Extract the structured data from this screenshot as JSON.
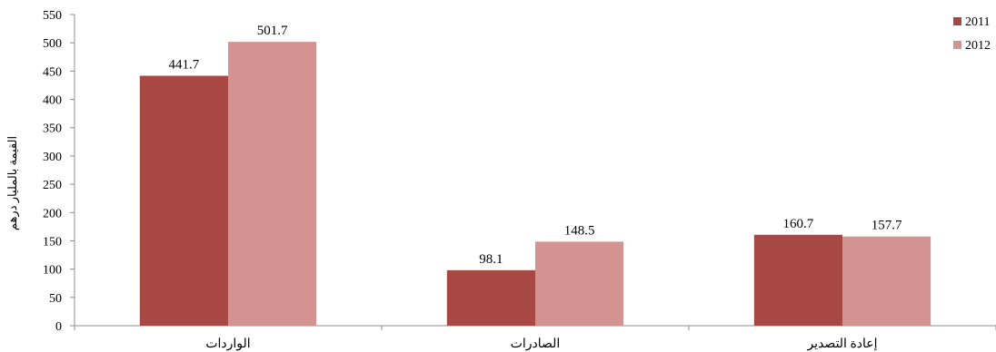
{
  "chart_data": {
    "type": "bar",
    "title": "",
    "xlabel": "",
    "ylabel": "القيمة بالمليار درهم",
    "categories": [
      "الواردات",
      "الصادرات",
      "إعادة التصدير"
    ],
    "series": [
      {
        "name": "2011",
        "values": [
          441.7,
          98.1,
          160.7
        ],
        "color": "#a84844"
      },
      {
        "name": "2012",
        "values": [
          501.7,
          148.5,
          157.7
        ],
        "color": "#d39391"
      }
    ],
    "ylim": [
      0,
      550
    ],
    "yticks": [
      0,
      50,
      100,
      150,
      200,
      250,
      300,
      350,
      400,
      450,
      500,
      550
    ],
    "grid": false,
    "legend_position": "top-right"
  }
}
